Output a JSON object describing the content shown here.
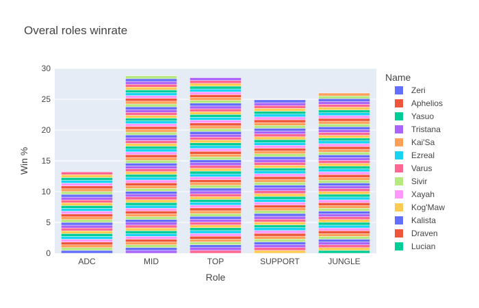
{
  "chart_data": {
    "type": "bar",
    "stacked": true,
    "title": "Overal roles winrate",
    "xlabel": "Role",
    "ylabel": "Win %",
    "categories": [
      "ADC",
      "MID",
      "TOP",
      "SUPPORT",
      "JUNGLE"
    ],
    "totals": [
      13.2,
      28.8,
      28.5,
      24.9,
      26.0
    ],
    "segments_per_bar": [
      29,
      63,
      62,
      54,
      57
    ],
    "ylim": [
      0,
      30
    ],
    "yticks": [
      0,
      5,
      10,
      15,
      20,
      25,
      30
    ],
    "grid": true,
    "legend_position": "right",
    "legend": {
      "title": "Name",
      "entries": [
        "Zeri",
        "Aphelios",
        "Yasuo",
        "Tristana",
        "Kai'Sa",
        "Ezreal",
        "Varus",
        "Sivir",
        "Xayah",
        "Kog'Maw",
        "Kalista",
        "Draven",
        "Lucian"
      ]
    },
    "colors": [
      "#636efa",
      "#EF553B",
      "#00cc96",
      "#ab63fa",
      "#FFA15A",
      "#19d3f3",
      "#FF6692",
      "#B6E880",
      "#FF97FF",
      "#FECB52"
    ],
    "plot_background": "#e5ecf6"
  }
}
